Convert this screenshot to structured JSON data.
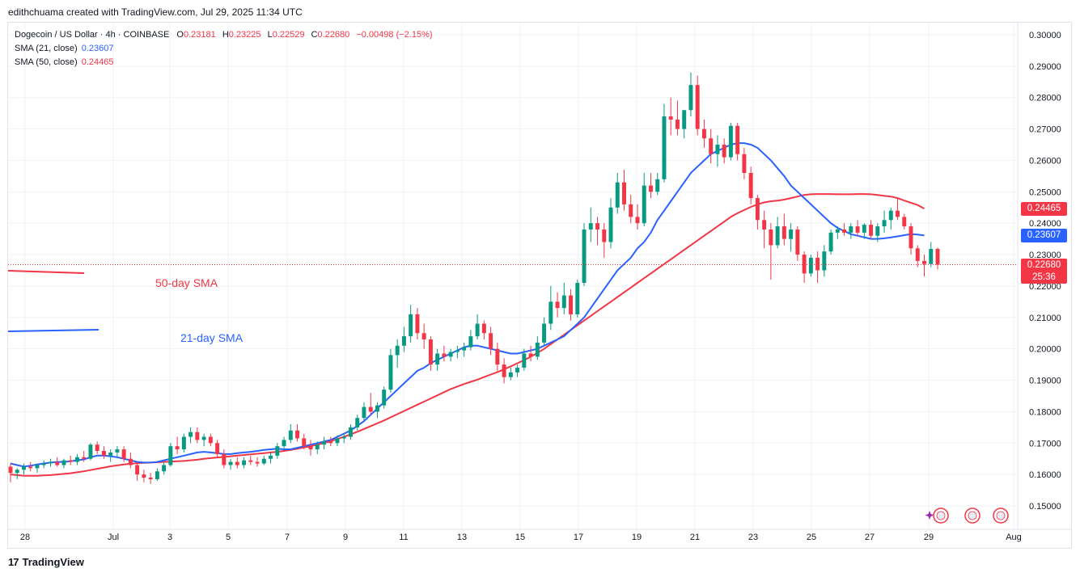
{
  "header": {
    "credit": "edithchuama created with TradingView.com, Jul 29, 2025 11:34 UTC"
  },
  "legend": {
    "symbol": "Dogecoin / US Dollar · 4h · COINBASE",
    "open_key": "O",
    "open": "0.23181",
    "high_key": "H",
    "high": "0.23225",
    "low_key": "L",
    "low": "0.22529",
    "close_key": "C",
    "close": "0.22680",
    "change": "−0.00498 (−2.15%)",
    "sma21_label": "SMA (21, close)",
    "sma21_value": "0.23607",
    "sma50_label": "SMA (50, close)",
    "sma50_value": "0.24465"
  },
  "annotations": {
    "sma50": "50-day SMA",
    "sma21": "21-day SMA"
  },
  "price_tags": {
    "sma50": "0.24465",
    "sma21": "0.23607",
    "last": "0.22680",
    "countdown": "25:36"
  },
  "footer": {
    "brand": "TradingView",
    "brand_mark": "17"
  },
  "colors": {
    "up": "#089981",
    "down": "#f23645",
    "sma21": "#2962ff",
    "sma50": "#f23645"
  },
  "chart_data": {
    "type": "candlestick",
    "symbol": "Dogecoin / US Dollar",
    "timeframe": "4h",
    "ylim": [
      0.143,
      0.302
    ],
    "y_ticks": [
      "0.30000",
      "0.29000",
      "0.28000",
      "0.27000",
      "0.26000",
      "0.25000",
      "0.24000",
      "0.23000",
      "0.22000",
      "0.21000",
      "0.20000",
      "0.19000",
      "0.18000",
      "0.17000",
      "0.16000",
      "0.15000"
    ],
    "x_ticks": [
      "28",
      "Jul",
      "3",
      "5",
      "7",
      "9",
      "11",
      "13",
      "15",
      "17",
      "19",
      "21",
      "23",
      "25",
      "27",
      "29",
      "Aug"
    ],
    "candles_ohlc": [
      [
        0.1625,
        0.1635,
        0.1575,
        0.1605
      ],
      [
        0.1605,
        0.162,
        0.1585,
        0.1615
      ],
      [
        0.1615,
        0.1635,
        0.16,
        0.1625
      ],
      [
        0.1625,
        0.164,
        0.161,
        0.162
      ],
      [
        0.162,
        0.1635,
        0.1605,
        0.163
      ],
      [
        0.163,
        0.1645,
        0.162,
        0.1635
      ],
      [
        0.1635,
        0.165,
        0.1625,
        0.164
      ],
      [
        0.164,
        0.1655,
        0.1625,
        0.163
      ],
      [
        0.163,
        0.165,
        0.162,
        0.1645
      ],
      [
        0.1645,
        0.166,
        0.163,
        0.164
      ],
      [
        0.164,
        0.1665,
        0.163,
        0.1655
      ],
      [
        0.1655,
        0.1675,
        0.164,
        0.165
      ],
      [
        0.165,
        0.17,
        0.1645,
        0.1695
      ],
      [
        0.1695,
        0.1705,
        0.1665,
        0.1675
      ],
      [
        0.1675,
        0.169,
        0.165,
        0.166
      ],
      [
        0.166,
        0.168,
        0.164,
        0.167
      ],
      [
        0.167,
        0.169,
        0.1655,
        0.168
      ],
      [
        0.168,
        0.169,
        0.164,
        0.165
      ],
      [
        0.165,
        0.167,
        0.162,
        0.163
      ],
      [
        0.163,
        0.164,
        0.158,
        0.16
      ],
      [
        0.16,
        0.1615,
        0.1575,
        0.159
      ],
      [
        0.159,
        0.1605,
        0.157,
        0.1585
      ],
      [
        0.1585,
        0.162,
        0.158,
        0.161
      ],
      [
        0.161,
        0.164,
        0.16,
        0.163
      ],
      [
        0.163,
        0.17,
        0.1625,
        0.169
      ],
      [
        0.169,
        0.172,
        0.1665,
        0.168
      ],
      [
        0.168,
        0.173,
        0.167,
        0.172
      ],
      [
        0.172,
        0.175,
        0.17,
        0.1735
      ],
      [
        0.1735,
        0.175,
        0.17,
        0.171
      ],
      [
        0.171,
        0.173,
        0.169,
        0.172
      ],
      [
        0.172,
        0.173,
        0.169,
        0.17
      ],
      [
        0.17,
        0.171,
        0.1655,
        0.1665
      ],
      [
        0.1665,
        0.168,
        0.162,
        0.163
      ],
      [
        0.163,
        0.165,
        0.1615,
        0.164
      ],
      [
        0.164,
        0.1655,
        0.162,
        0.163
      ],
      [
        0.163,
        0.1655,
        0.162,
        0.1645
      ],
      [
        0.1645,
        0.166,
        0.163,
        0.164
      ],
      [
        0.164,
        0.1655,
        0.1625,
        0.1635
      ],
      [
        0.1635,
        0.166,
        0.163,
        0.165
      ],
      [
        0.165,
        0.167,
        0.1635,
        0.166
      ],
      [
        0.166,
        0.17,
        0.165,
        0.169
      ],
      [
        0.169,
        0.172,
        0.168,
        0.171
      ],
      [
        0.171,
        0.176,
        0.17,
        0.174
      ],
      [
        0.174,
        0.176,
        0.1705,
        0.1715
      ],
      [
        0.1715,
        0.173,
        0.168,
        0.169
      ],
      [
        0.169,
        0.171,
        0.166,
        0.168
      ],
      [
        0.168,
        0.1705,
        0.1665,
        0.1695
      ],
      [
        0.1695,
        0.172,
        0.168,
        0.1705
      ],
      [
        0.1705,
        0.172,
        0.169,
        0.17
      ],
      [
        0.17,
        0.1725,
        0.169,
        0.1715
      ],
      [
        0.1715,
        0.173,
        0.17,
        0.172
      ],
      [
        0.172,
        0.176,
        0.171,
        0.175
      ],
      [
        0.175,
        0.179,
        0.174,
        0.178
      ],
      [
        0.178,
        0.183,
        0.177,
        0.1815
      ],
      [
        0.1815,
        0.186,
        0.179,
        0.18
      ],
      [
        0.18,
        0.183,
        0.178,
        0.182
      ],
      [
        0.182,
        0.188,
        0.181,
        0.187
      ],
      [
        0.187,
        0.2,
        0.186,
        0.198
      ],
      [
        0.198,
        0.203,
        0.194,
        0.201
      ],
      [
        0.201,
        0.207,
        0.199,
        0.204
      ],
      [
        0.204,
        0.214,
        0.202,
        0.211
      ],
      [
        0.211,
        0.213,
        0.203,
        0.205
      ],
      [
        0.205,
        0.208,
        0.2,
        0.203
      ],
      [
        0.203,
        0.204,
        0.193,
        0.195
      ],
      [
        0.195,
        0.2,
        0.193,
        0.1985
      ],
      [
        0.1985,
        0.201,
        0.196,
        0.1975
      ],
      [
        0.1975,
        0.2,
        0.196,
        0.199
      ],
      [
        0.199,
        0.201,
        0.197,
        0.1995
      ],
      [
        0.1995,
        0.202,
        0.1975,
        0.2005
      ],
      [
        0.2005,
        0.206,
        0.1995,
        0.204
      ],
      [
        0.204,
        0.211,
        0.203,
        0.208
      ],
      [
        0.208,
        0.209,
        0.203,
        0.205
      ],
      [
        0.205,
        0.207,
        0.198,
        0.2
      ],
      [
        0.2,
        0.202,
        0.193,
        0.195
      ],
      [
        0.195,
        0.197,
        0.189,
        0.191
      ],
      [
        0.191,
        0.194,
        0.19,
        0.1925
      ],
      [
        0.1925,
        0.195,
        0.191,
        0.194
      ],
      [
        0.194,
        0.2,
        0.193,
        0.1985
      ],
      [
        0.1985,
        0.201,
        0.196,
        0.1975
      ],
      [
        0.1975,
        0.204,
        0.1965,
        0.202
      ],
      [
        0.202,
        0.21,
        0.201,
        0.208
      ],
      [
        0.208,
        0.22,
        0.206,
        0.215
      ],
      [
        0.215,
        0.218,
        0.21,
        0.213
      ],
      [
        0.213,
        0.221,
        0.211,
        0.217
      ],
      [
        0.217,
        0.219,
        0.209,
        0.211
      ],
      [
        0.211,
        0.222,
        0.21,
        0.221
      ],
      [
        0.221,
        0.24,
        0.22,
        0.238
      ],
      [
        0.238,
        0.245,
        0.234,
        0.24
      ],
      [
        0.24,
        0.242,
        0.233,
        0.238
      ],
      [
        0.238,
        0.24,
        0.229,
        0.234
      ],
      [
        0.234,
        0.248,
        0.232,
        0.245
      ],
      [
        0.245,
        0.256,
        0.243,
        0.253
      ],
      [
        0.253,
        0.257,
        0.244,
        0.246
      ],
      [
        0.246,
        0.249,
        0.24,
        0.242
      ],
      [
        0.242,
        0.246,
        0.238,
        0.24
      ],
      [
        0.24,
        0.256,
        0.239,
        0.252
      ],
      [
        0.252,
        0.256,
        0.248,
        0.25
      ],
      [
        0.25,
        0.256,
        0.249,
        0.254
      ],
      [
        0.254,
        0.278,
        0.253,
        0.274
      ],
      [
        0.274,
        0.28,
        0.268,
        0.273
      ],
      [
        0.273,
        0.279,
        0.268,
        0.27
      ],
      [
        0.27,
        0.276,
        0.267,
        0.276
      ],
      [
        0.276,
        0.288,
        0.274,
        0.284
      ],
      [
        0.284,
        0.287,
        0.268,
        0.27
      ],
      [
        0.27,
        0.273,
        0.264,
        0.267
      ],
      [
        0.267,
        0.27,
        0.259,
        0.262
      ],
      [
        0.262,
        0.268,
        0.258,
        0.265
      ],
      [
        0.265,
        0.267,
        0.259,
        0.261
      ],
      [
        0.261,
        0.272,
        0.26,
        0.271
      ],
      [
        0.271,
        0.272,
        0.26,
        0.262
      ],
      [
        0.262,
        0.264,
        0.254,
        0.256
      ],
      [
        0.256,
        0.258,
        0.246,
        0.248
      ],
      [
        0.248,
        0.249,
        0.238,
        0.241
      ],
      [
        0.241,
        0.244,
        0.232,
        0.238
      ],
      [
        0.238,
        0.24,
        0.222,
        0.233
      ],
      [
        0.233,
        0.242,
        0.232,
        0.239
      ],
      [
        0.239,
        0.243,
        0.233,
        0.235
      ],
      [
        0.235,
        0.24,
        0.231,
        0.238
      ],
      [
        0.238,
        0.239,
        0.228,
        0.23
      ],
      [
        0.23,
        0.231,
        0.221,
        0.224
      ],
      [
        0.224,
        0.23,
        0.223,
        0.229
      ],
      [
        0.229,
        0.231,
        0.221,
        0.225
      ],
      [
        0.225,
        0.233,
        0.223,
        0.231
      ],
      [
        0.231,
        0.238,
        0.23,
        0.237
      ],
      [
        0.237,
        0.239,
        0.235,
        0.238
      ],
      [
        0.238,
        0.24,
        0.236,
        0.237
      ],
      [
        0.237,
        0.24,
        0.235,
        0.239
      ],
      [
        0.239,
        0.241,
        0.236,
        0.237
      ],
      [
        0.237,
        0.24,
        0.235,
        0.2395
      ],
      [
        0.2395,
        0.241,
        0.235,
        0.236
      ],
      [
        0.236,
        0.24,
        0.234,
        0.239
      ],
      [
        0.239,
        0.244,
        0.237,
        0.241
      ],
      [
        0.241,
        0.245,
        0.238,
        0.244
      ],
      [
        0.244,
        0.248,
        0.241,
        0.242
      ],
      [
        0.242,
        0.243,
        0.238,
        0.239
      ],
      [
        0.239,
        0.24,
        0.23,
        0.232
      ],
      [
        0.232,
        0.233,
        0.226,
        0.228
      ],
      [
        0.228,
        0.23,
        0.223,
        0.227
      ],
      [
        0.227,
        0.234,
        0.226,
        0.2318
      ],
      [
        0.23181,
        0.23225,
        0.22529,
        0.2268
      ]
    ],
    "sma21": [
      0.1635,
      0.163,
      0.1625,
      0.1628,
      0.1632,
      0.1635,
      0.1638,
      0.164,
      0.164,
      0.1642,
      0.1645,
      0.1648,
      0.1655,
      0.166,
      0.166,
      0.1658,
      0.1655,
      0.165,
      0.1645,
      0.164,
      0.1638,
      0.1638,
      0.164,
      0.1645,
      0.165,
      0.1655,
      0.166,
      0.1665,
      0.167,
      0.1672,
      0.167,
      0.1668,
      0.1665,
      0.1665,
      0.1668,
      0.167,
      0.1672,
      0.1675,
      0.1678,
      0.168,
      0.1682,
      0.168,
      0.168,
      0.1685,
      0.169,
      0.1695,
      0.17,
      0.1705,
      0.171,
      0.172,
      0.173,
      0.174,
      0.1755,
      0.177,
      0.179,
      0.181,
      0.183,
      0.185,
      0.187,
      0.189,
      0.191,
      0.193,
      0.194,
      0.1955,
      0.1965,
      0.1975,
      0.1985,
      0.1995,
      0.2005,
      0.201,
      0.201,
      0.2005,
      0.2,
      0.1995,
      0.199,
      0.1985,
      0.1985,
      0.199,
      0.1995,
      0.2,
      0.201,
      0.202,
      0.203,
      0.204,
      0.206,
      0.208,
      0.21,
      0.213,
      0.216,
      0.219,
      0.222,
      0.225,
      0.227,
      0.229,
      0.232,
      0.234,
      0.237,
      0.241,
      0.244,
      0.247,
      0.25,
      0.253,
      0.256,
      0.258,
      0.26,
      0.262,
      0.263,
      0.264,
      0.265,
      0.2655,
      0.2655,
      0.265,
      0.264,
      0.262,
      0.26,
      0.2575,
      0.255,
      0.252,
      0.25,
      0.248,
      0.246,
      0.244,
      0.242,
      0.24,
      0.2385,
      0.2375,
      0.2365,
      0.236,
      0.2355,
      0.235,
      0.235,
      0.2352,
      0.2355,
      0.2358,
      0.2362,
      0.2365,
      0.2364,
      0.2361
    ],
    "sma50": [
      0.16,
      0.1598,
      0.1596,
      0.1596,
      0.1596,
      0.1597,
      0.1598,
      0.16,
      0.1602,
      0.1604,
      0.1607,
      0.161,
      0.1614,
      0.1618,
      0.1622,
      0.1626,
      0.1629,
      0.1632,
      0.1634,
      0.1636,
      0.1637,
      0.1638,
      0.1639,
      0.164,
      0.1641,
      0.1642,
      0.1643,
      0.1645,
      0.1647,
      0.165,
      0.1652,
      0.1654,
      0.1656,
      0.1658,
      0.166,
      0.1662,
      0.1664,
      0.1666,
      0.1668,
      0.167,
      0.1672,
      0.1675,
      0.1678,
      0.1682,
      0.1686,
      0.169,
      0.1695,
      0.17,
      0.1706,
      0.1713,
      0.172,
      0.1728,
      0.1736,
      0.1745,
      0.1754,
      0.1763,
      0.1772,
      0.1782,
      0.1792,
      0.1802,
      0.1812,
      0.1822,
      0.1832,
      0.1842,
      0.1852,
      0.1862,
      0.1872,
      0.188,
      0.1888,
      0.1895,
      0.1902,
      0.191,
      0.1918,
      0.1926,
      0.1935,
      0.1944,
      0.1954,
      0.1964,
      0.1975,
      0.1987,
      0.2,
      0.2015,
      0.203,
      0.2045,
      0.206,
      0.2075,
      0.209,
      0.2105,
      0.212,
      0.2135,
      0.215,
      0.2165,
      0.218,
      0.2195,
      0.221,
      0.2225,
      0.224,
      0.2255,
      0.227,
      0.2285,
      0.23,
      0.2315,
      0.233,
      0.2345,
      0.236,
      0.2375,
      0.239,
      0.2405,
      0.242,
      0.2432,
      0.2442,
      0.2452,
      0.246,
      0.2466,
      0.247,
      0.2472,
      0.2475,
      0.248,
      0.2485,
      0.249,
      0.2492,
      0.2493,
      0.2493,
      0.2493,
      0.2492,
      0.2492,
      0.2492,
      0.2493,
      0.2493,
      0.2492,
      0.249,
      0.2487,
      0.2485,
      0.248,
      0.2472,
      0.2465,
      0.2458,
      0.24465
    ]
  }
}
